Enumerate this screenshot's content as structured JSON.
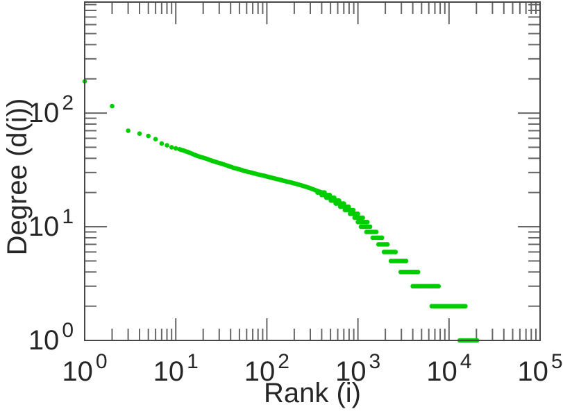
{
  "figure": {
    "background": "#ffffff",
    "frame_color": "#474747",
    "tick_color": "#666666",
    "text_color": "#262626"
  },
  "chart_data": {
    "type": "scatter",
    "title": "",
    "xlabel": "Rank (i)",
    "ylabel": "Degree (d(i))",
    "x_scale": "log",
    "y_scale": "log",
    "xlim": [
      1,
      100000
    ],
    "ylim": [
      1,
      947
    ],
    "grid": false,
    "legend": "none",
    "marker": {
      "shape": "circle",
      "color": "#00CD00",
      "radius_px": 3.3
    },
    "x_ticks": [
      {
        "value": 1,
        "base": "10",
        "exp": "0"
      },
      {
        "value": 10,
        "base": "10",
        "exp": "1"
      },
      {
        "value": 100,
        "base": "10",
        "exp": "2"
      },
      {
        "value": 1000,
        "base": "10",
        "exp": "3"
      },
      {
        "value": 10000,
        "base": "10",
        "exp": "4"
      },
      {
        "value": 100000,
        "base": "10",
        "exp": "5"
      }
    ],
    "y_ticks": [
      {
        "value": 1,
        "base": "10",
        "exp": "0"
      },
      {
        "value": 10,
        "base": "10",
        "exp": "1"
      },
      {
        "value": 100,
        "base": "10",
        "exp": "2"
      }
    ],
    "head_points": [
      [
        1,
        190
      ],
      [
        2,
        115
      ],
      [
        3,
        70
      ],
      [
        4,
        66
      ],
      [
        5,
        63
      ],
      [
        6,
        59
      ],
      [
        7,
        54
      ],
      [
        8,
        52
      ],
      [
        9,
        50
      ],
      [
        10,
        49
      ]
    ],
    "curve_points": [
      [
        11,
        48
      ],
      [
        12,
        47
      ],
      [
        14,
        45
      ],
      [
        16,
        43
      ],
      [
        18,
        41.5
      ],
      [
        21,
        40
      ],
      [
        24,
        38.5
      ],
      [
        28,
        37
      ],
      [
        32,
        35.8
      ],
      [
        37,
        34.5
      ],
      [
        43,
        33
      ],
      [
        50,
        32
      ],
      [
        58,
        30.8
      ],
      [
        67,
        30
      ],
      [
        78,
        29
      ],
      [
        90,
        28.3
      ],
      [
        105,
        27.4
      ],
      [
        122,
        26.6
      ],
      [
        142,
        25.8
      ],
      [
        165,
        25
      ],
      [
        192,
        24.3
      ],
      [
        223,
        23.5
      ],
      [
        259,
        22.7
      ],
      [
        301,
        21.8
      ],
      [
        350,
        20.8
      ],
      [
        390,
        20.2
      ]
    ],
    "tail_runs": [
      {
        "degree": 20,
        "rank_min": 360,
        "rank_max": 430
      },
      {
        "degree": 19,
        "rank_min": 400,
        "rank_max": 490
      },
      {
        "degree": 18,
        "rank_min": 450,
        "rank_max": 550
      },
      {
        "degree": 17,
        "rank_min": 505,
        "rank_max": 620
      },
      {
        "degree": 16,
        "rank_min": 570,
        "rank_max": 700
      },
      {
        "degree": 15,
        "rank_min": 640,
        "rank_max": 790
      },
      {
        "degree": 14,
        "rank_min": 720,
        "rank_max": 890
      },
      {
        "degree": 13,
        "rank_min": 820,
        "rank_max": 1000
      },
      {
        "degree": 12,
        "rank_min": 920,
        "rank_max": 1130
      },
      {
        "degree": 11,
        "rank_min": 1000,
        "rank_max": 1270
      },
      {
        "degree": 10,
        "rank_min": 1080,
        "rank_max": 1360
      },
      {
        "degree": 9,
        "rank_min": 1240,
        "rank_max": 1590
      },
      {
        "degree": 8,
        "rank_min": 1450,
        "rank_max": 1840
      },
      {
        "degree": 7,
        "rank_min": 1680,
        "rank_max": 2110
      },
      {
        "degree": 6,
        "rank_min": 1930,
        "rank_max": 2590
      },
      {
        "degree": 5,
        "rank_min": 2300,
        "rank_max": 3380
      },
      {
        "degree": 4,
        "rank_min": 2950,
        "rank_max": 4570
      },
      {
        "degree": 3,
        "rank_min": 4000,
        "rank_max": 7680
      },
      {
        "degree": 2,
        "rank_min": 6460,
        "rank_max": 15100
      },
      {
        "degree": 1,
        "rank_min": 13100,
        "rank_max": 20300
      }
    ]
  }
}
